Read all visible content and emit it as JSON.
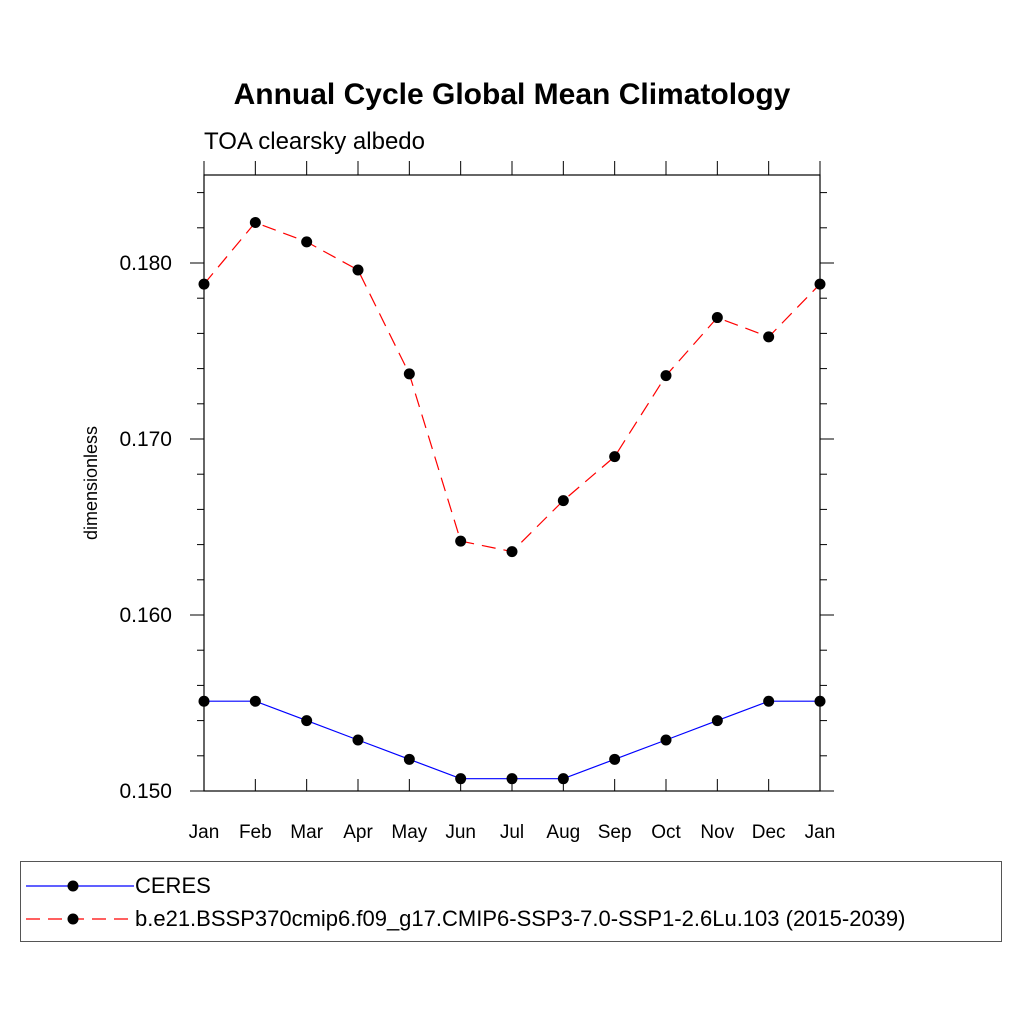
{
  "chart_data": {
    "type": "line",
    "title": "Annual Cycle Global Mean Climatology",
    "subtitle": "TOA clearsky albedo",
    "xlabel": "",
    "ylabel": "dimensionless",
    "categories": [
      "Jan",
      "Feb",
      "Mar",
      "Apr",
      "May",
      "Jun",
      "Jul",
      "Aug",
      "Sep",
      "Oct",
      "Nov",
      "Dec",
      "Jan"
    ],
    "ylim": [
      0.15,
      0.185
    ],
    "yticks": [
      0.15,
      0.16,
      0.17,
      0.18
    ],
    "ytick_labels": [
      "0.150",
      "0.160",
      "0.170",
      "0.180"
    ],
    "grid": false,
    "legend_position": "bottom",
    "series": [
      {
        "name": "CERES",
        "color": "#0000ff",
        "dash": "solid",
        "values": [
          0.1551,
          0.1551,
          0.154,
          0.1529,
          0.1518,
          0.1507,
          0.1507,
          0.1507,
          0.1518,
          0.1529,
          0.154,
          0.1551,
          0.1551
        ]
      },
      {
        "name": "b.e21.BSSP370cmip6.f09_g17.CMIP6-SSP3-7.0-SSP1-2.6Lu.103 (2015-2039)",
        "color": "#ff0000",
        "dash": "dashed",
        "values": [
          0.1788,
          0.1823,
          0.1812,
          0.1796,
          0.1737,
          0.1642,
          0.1636,
          0.1665,
          0.169,
          0.1736,
          0.1769,
          0.1758,
          0.1788
        ]
      }
    ]
  }
}
